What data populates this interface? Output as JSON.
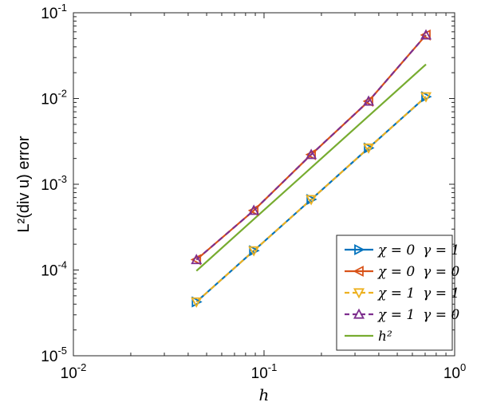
{
  "chart_data": {
    "type": "line",
    "xscale": "log",
    "yscale": "log",
    "xlim": [
      0.01,
      1
    ],
    "ylim": [
      1e-05,
      0.1
    ],
    "xlabel": "h",
    "ylabel": "L²(div u) error",
    "xticks": [
      {
        "base": "10",
        "exp": "-2",
        "value": 0.01
      },
      {
        "base": "10",
        "exp": "-1",
        "value": 0.1
      },
      {
        "base": "10",
        "exp": "0",
        "value": 1
      }
    ],
    "yticks": [
      {
        "base": "10",
        "exp": "-5",
        "value": 1e-05
      },
      {
        "base": "10",
        "exp": "-4",
        "value": 0.0001
      },
      {
        "base": "10",
        "exp": "-3",
        "value": 0.001
      },
      {
        "base": "10",
        "exp": "-2",
        "value": 0.01
      },
      {
        "base": "10",
        "exp": "-1",
        "value": 0.1
      }
    ],
    "grid": false,
    "legend_position": "bottom-right",
    "x": [
      0.0442,
      0.0884,
      0.1768,
      0.3536,
      0.7071
    ],
    "series": [
      {
        "name": "χ = 0 γ = 1",
        "label_parts": [
          "χ = 0",
          "γ = 1"
        ],
        "values": [
          4.25e-05,
          0.000168,
          0.000665,
          0.00265,
          0.0105
        ],
        "color": "#0072BD",
        "marker": "triangle-right",
        "dash": "solid"
      },
      {
        "name": "χ = 0 γ = 0",
        "label_parts": [
          "χ = 0",
          "γ = 0"
        ],
        "values": [
          0.000132,
          0.000495,
          0.00222,
          0.0093,
          0.055
        ],
        "color": "#D95319",
        "marker": "triangle-left",
        "dash": "solid"
      },
      {
        "name": "χ = 1 γ = 1",
        "label_parts": [
          "χ = 1",
          "γ = 1"
        ],
        "values": [
          4.25e-05,
          0.000168,
          0.000665,
          0.00265,
          0.0105
        ],
        "color": "#EDB120",
        "marker": "triangle-down",
        "dash": "dashed"
      },
      {
        "name": "χ = 1 γ = 0",
        "label_parts": [
          "χ = 1",
          "γ = 0"
        ],
        "values": [
          0.000132,
          0.000495,
          0.00222,
          0.0093,
          0.055
        ],
        "color": "#7E2F8E",
        "marker": "triangle-up",
        "dash": "dashed"
      },
      {
        "name": "h²",
        "label_parts": [
          "h²",
          ""
        ],
        "values": [
          9.77e-05,
          0.000391,
          0.00156,
          0.00625,
          0.025
        ],
        "color": "#77AC30",
        "marker": "none",
        "dash": "solid"
      }
    ]
  }
}
